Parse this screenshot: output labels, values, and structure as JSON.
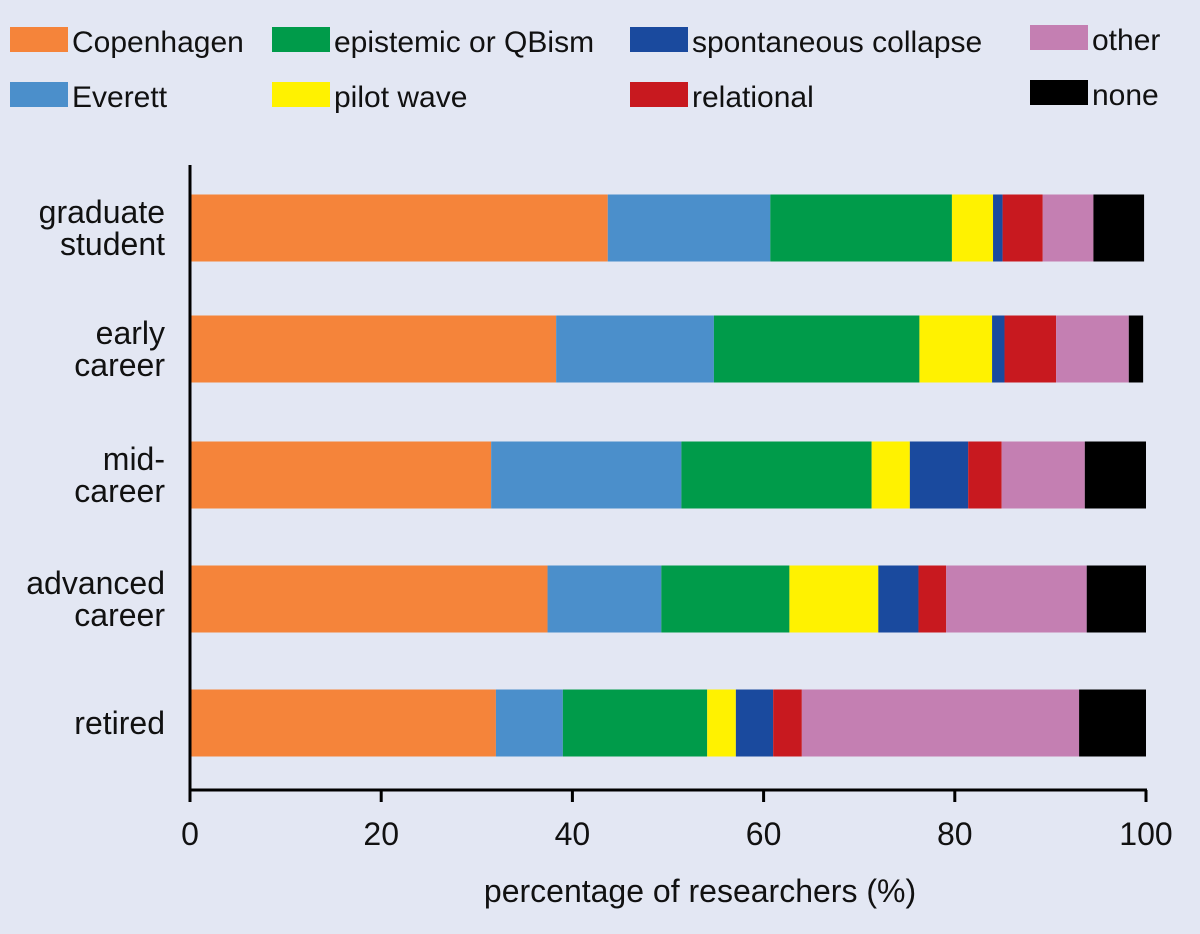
{
  "chart_data": {
    "type": "bar",
    "orientation": "horizontal",
    "stacked": true,
    "title": "",
    "xlabel": "percentage of researchers (%)",
    "ylabel": "",
    "xlim": [
      0,
      100
    ],
    "xticks": [
      0,
      20,
      40,
      60,
      80,
      100
    ],
    "grid": false,
    "legend_position": "top",
    "categories": [
      [
        "graduate",
        "student"
      ],
      [
        "early",
        "career"
      ],
      [
        "mid-",
        "career"
      ],
      [
        "advanced",
        "career"
      ],
      [
        "retired"
      ]
    ],
    "series": [
      {
        "name": "Copenhagen",
        "color": "#f5843a",
        "values": [
          43.7,
          38.3,
          31.5,
          37.4,
          32.0
        ]
      },
      {
        "name": "Everett",
        "color": "#4b8fcb",
        "values": [
          17.0,
          16.5,
          19.9,
          11.9,
          7.0
        ]
      },
      {
        "name": "epistemic or QBism",
        "color": "#009b4a",
        "values": [
          19.0,
          21.5,
          19.9,
          13.4,
          15.1
        ]
      },
      {
        "name": "pilot wave",
        "color": "#fff200",
        "values": [
          4.3,
          7.6,
          4.0,
          9.3,
          3.0
        ]
      },
      {
        "name": "spontaneous collapse",
        "color": "#1a4a9e",
        "values": [
          1.0,
          1.3,
          6.1,
          4.2,
          3.9
        ]
      },
      {
        "name": "relational",
        "color": "#c8191f",
        "values": [
          4.2,
          5.4,
          3.5,
          2.9,
          3.0
        ]
      },
      {
        "name": "other",
        "color": "#c47fb2",
        "values": [
          5.3,
          7.6,
          8.7,
          14.7,
          29.0
        ]
      },
      {
        "name": "none",
        "color": "#000000",
        "values": [
          5.3,
          1.5,
          6.4,
          6.2,
          7.0
        ]
      }
    ]
  }
}
